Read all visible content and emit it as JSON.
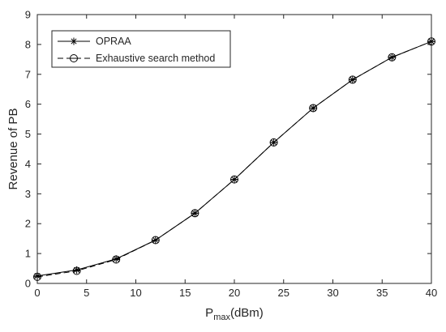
{
  "chart_data": {
    "type": "line",
    "xlabel_main": "P",
    "xlabel_sub": "max",
    "xlabel_unit": "(dBm)",
    "ylabel": "Revenue of PB",
    "xlim": [
      0,
      40
    ],
    "ylim": [
      0,
      9
    ],
    "xticks": [
      0,
      5,
      10,
      15,
      20,
      25,
      30,
      35,
      40
    ],
    "yticks": [
      0,
      1,
      2,
      3,
      4,
      5,
      6,
      7,
      8,
      9
    ],
    "grid": false,
    "legend_position": "top-left",
    "x": [
      0,
      4,
      8,
      12,
      16,
      20,
      24,
      28,
      32,
      36,
      40
    ],
    "series": [
      {
        "name": "OPRAA",
        "marker": "asterisk",
        "line": "solid",
        "color": "#000000",
        "values": [
          0.25,
          0.45,
          0.82,
          1.45,
          2.35,
          3.48,
          4.72,
          5.87,
          6.82,
          7.57,
          8.1
        ]
      },
      {
        "name": "Exhaustive search method",
        "marker": "circle",
        "line": "dashed",
        "color": "#000000",
        "values": [
          0.22,
          0.42,
          0.8,
          1.45,
          2.35,
          3.48,
          4.72,
          5.87,
          6.82,
          7.57,
          8.1
        ]
      }
    ]
  }
}
